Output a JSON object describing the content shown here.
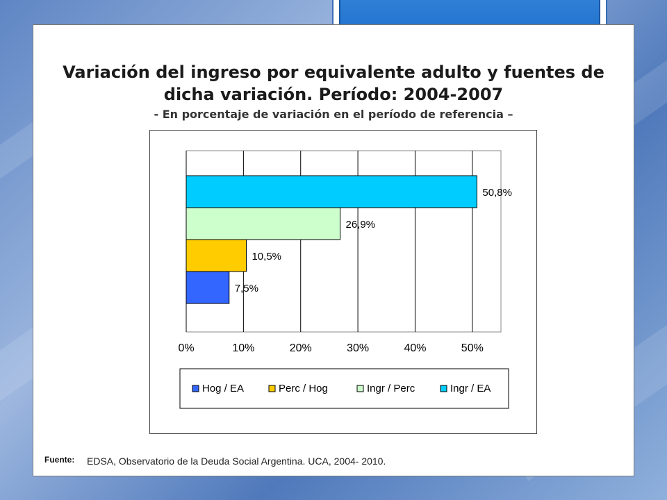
{
  "slide": {
    "title_line1": "Variación del ingreso por equivalente adulto y fuentes de",
    "title_line2": "dicha variación. Período: 2004-2007",
    "subtitle": "- En porcentaje de variación en el período de referencia –",
    "source_label": "Fuente:",
    "source_text": "EDSA, Observatorio de la Deuda Social Argentina. UCA, 2004- 2010."
  },
  "chart_data": {
    "type": "bar",
    "orientation": "horizontal",
    "title": "",
    "xlabel": "",
    "ylabel": "",
    "xlim": [
      0,
      55
    ],
    "x_ticks": [
      "0%",
      "10%",
      "20%",
      "30%",
      "40%",
      "50%"
    ],
    "grid": true,
    "legend_position": "bottom",
    "series": [
      {
        "name": "Hog / EA",
        "values": [
          7.5
        ],
        "label": "7,5%",
        "color": "#3366ff"
      },
      {
        "name": "Perc / Hog",
        "values": [
          10.5
        ],
        "label": "10,5%",
        "color": "#ffcc00"
      },
      {
        "name": "Ingr / Perc",
        "values": [
          26.9
        ],
        "label": "26,9%",
        "color": "#ccffcc"
      },
      {
        "name": "Ingr / EA",
        "values": [
          50.8
        ],
        "label": "50,8%",
        "color": "#00ccff"
      }
    ]
  }
}
